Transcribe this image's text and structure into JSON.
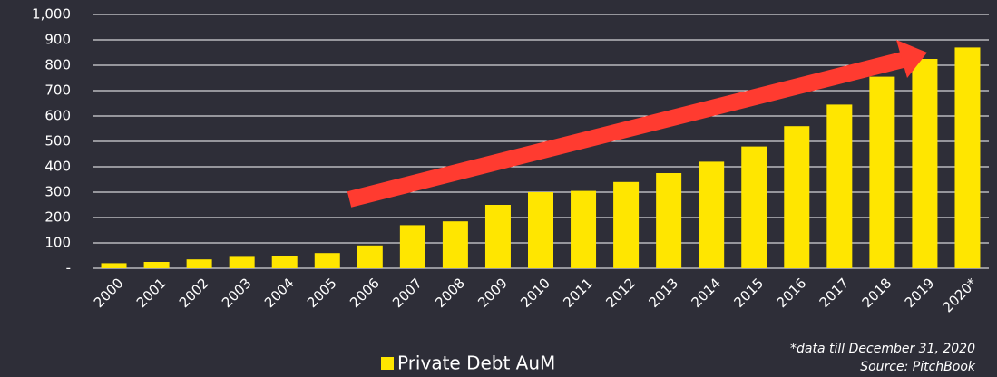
{
  "chart_data": {
    "type": "bar",
    "categories": [
      "2000",
      "2001",
      "2002",
      "2003",
      "2004",
      "2005",
      "2006",
      "2007",
      "2008",
      "2009",
      "2010",
      "2011",
      "2012",
      "2013",
      "2014",
      "2015",
      "2016",
      "2017",
      "2018",
      "2019",
      "2020*"
    ],
    "series": [
      {
        "name": "Private Debt AuM",
        "color": "#ffe600",
        "values": [
          20,
          25,
          35,
          45,
          50,
          60,
          90,
          170,
          185,
          250,
          300,
          305,
          340,
          375,
          420,
          480,
          560,
          645,
          755,
          825,
          870
        ]
      }
    ],
    "ylim": [
      0,
      1000
    ],
    "yticks": [
      {
        "value": 0,
        "label": "-"
      },
      100,
      200,
      300,
      400,
      500,
      600,
      700,
      800,
      900,
      {
        "value": 1000,
        "label": "1,000"
      }
    ],
    "grid": true,
    "annotations": [
      "*data till December 31, 2020",
      "Source: PitchBook"
    ]
  }
}
